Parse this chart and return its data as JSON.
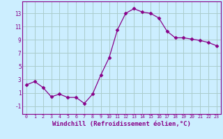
{
  "x": [
    0,
    1,
    2,
    3,
    4,
    5,
    6,
    7,
    8,
    9,
    10,
    11,
    12,
    13,
    14,
    15,
    16,
    17,
    18,
    19,
    20,
    21,
    22,
    23
  ],
  "y": [
    2.2,
    2.7,
    1.8,
    0.4,
    0.8,
    0.3,
    0.3,
    -0.6,
    0.8,
    3.7,
    6.3,
    10.5,
    13.0,
    13.7,
    13.2,
    13.0,
    12.3,
    10.3,
    9.3,
    9.3,
    9.1,
    8.9,
    8.6,
    8.1
  ],
  "line_color": "#880088",
  "marker": "D",
  "marker_size": 2.5,
  "bg_color": "#cceeff",
  "grid_color": "#aacccc",
  "xlabel": "Windchill (Refroidissement éolien,°C)",
  "xlabel_fontsize": 6.5,
  "yticks": [
    -1,
    1,
    3,
    5,
    7,
    9,
    11,
    13
  ],
  "xticks": [
    0,
    1,
    2,
    3,
    4,
    5,
    6,
    7,
    8,
    9,
    10,
    11,
    12,
    13,
    14,
    15,
    16,
    17,
    18,
    19,
    20,
    21,
    22,
    23
  ],
  "ylim": [
    -2.2,
    14.8
  ],
  "xlim": [
    -0.5,
    23.5
  ]
}
